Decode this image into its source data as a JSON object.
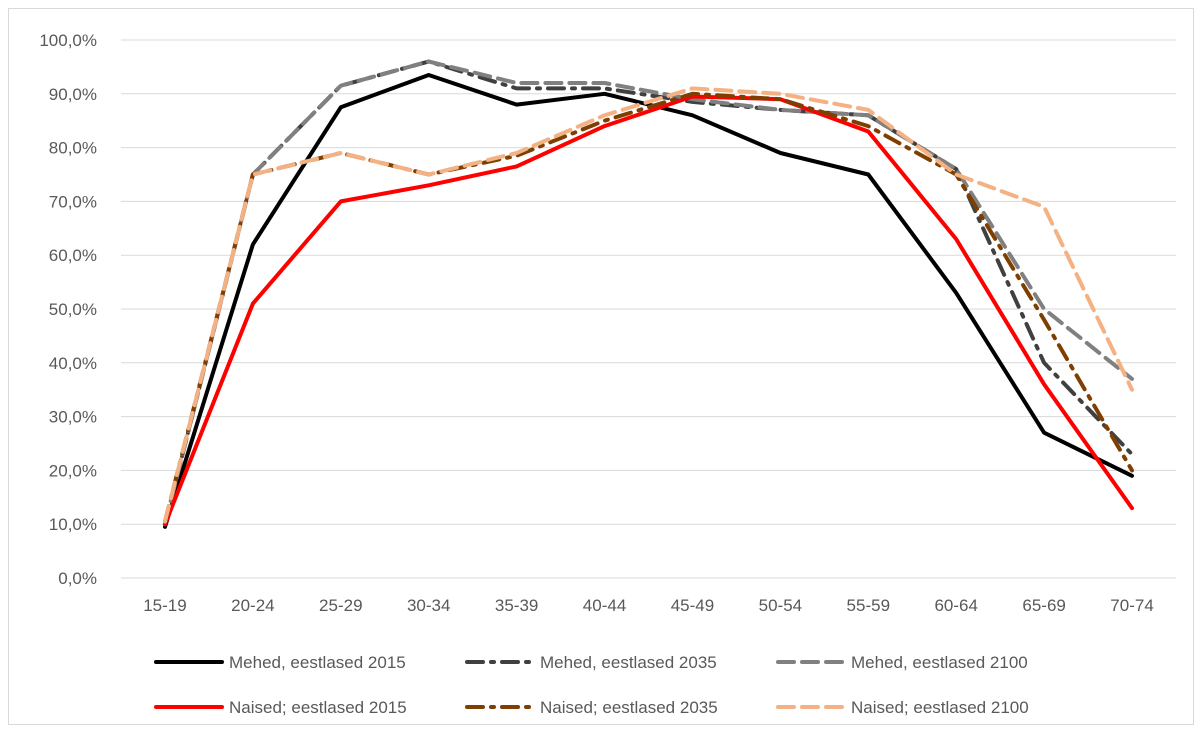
{
  "chart_data": {
    "type": "line",
    "title": "",
    "xlabel": "",
    "ylabel": "",
    "categories": [
      "15-19",
      "20-24",
      "25-29",
      "30-34",
      "35-39",
      "40-44",
      "45-49",
      "50-54",
      "55-59",
      "60-64",
      "65-69",
      "70-74"
    ],
    "ylim": [
      0,
      100
    ],
    "yticks": [
      "0,0%",
      "10,0%",
      "20,0%",
      "30,0%",
      "40,0%",
      "50,0%",
      "60,0%",
      "70,0%",
      "80,0%",
      "90,0%",
      "100,0%"
    ],
    "grid": true,
    "legend_position": "bottom",
    "series": [
      {
        "name": "Mehed, eestlased 2015",
        "color": "#000000",
        "style": "solid",
        "values": [
          9.5,
          62,
          87.5,
          93.5,
          88,
          90,
          86,
          79,
          75,
          53,
          27,
          19
        ]
      },
      {
        "name": "Mehed, eestlased 2035",
        "color": "#404040",
        "style": "dash-dot",
        "values": [
          10,
          75,
          91.5,
          96,
          91,
          91,
          88.5,
          87,
          86,
          76,
          40,
          23
        ]
      },
      {
        "name": "Mehed, eestlased 2100",
        "color": "#808080",
        "style": "dash",
        "values": [
          10,
          75,
          91.5,
          96,
          92,
          92,
          89,
          87,
          86,
          76,
          50,
          37
        ]
      },
      {
        "name": "Naised; eestlased 2015",
        "color": "#ff0000",
        "style": "solid",
        "values": [
          10,
          51,
          70,
          73,
          76.5,
          84,
          89.5,
          89,
          83,
          63,
          36,
          13
        ]
      },
      {
        "name": "Naised; eestlased 2035",
        "color": "#7f3f00",
        "style": "dash-dot",
        "values": [
          10.5,
          75,
          79,
          75,
          78.5,
          85,
          90,
          89,
          84,
          75,
          48,
          20
        ]
      },
      {
        "name": "Naised; eestlased 2100",
        "color": "#f4b183",
        "style": "dash",
        "values": [
          10.5,
          75,
          79,
          75,
          79,
          86,
          91,
          90,
          87,
          75,
          69,
          35
        ]
      }
    ]
  }
}
